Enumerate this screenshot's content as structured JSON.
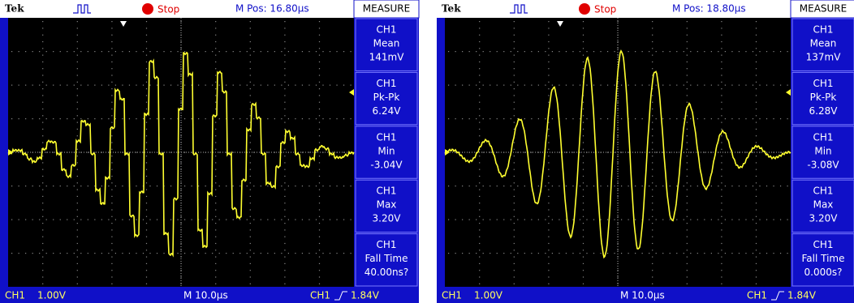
{
  "screens": [
    {
      "brand": "Tek",
      "status": "Stop",
      "position": "M Pos: 16.80µs",
      "menu_title": "MEASURE",
      "measurements": [
        {
          "channel": "CH1",
          "name": "Mean",
          "value": "141mV"
        },
        {
          "channel": "CH1",
          "name": "Pk-Pk",
          "value": "6.24V"
        },
        {
          "channel": "CH1",
          "name": "Min",
          "value": "-3.04V"
        },
        {
          "channel": "CH1",
          "name": "Max",
          "value": "3.20V"
        },
        {
          "channel": "CH1",
          "name": "Fall Time",
          "value": "40.00ns?"
        }
      ],
      "footer": {
        "channel": "CH1",
        "scale": "1.00V",
        "timebase": "M 10.0µs",
        "trigger_channel": "CH1",
        "trigger_level": "1.84V"
      }
    },
    {
      "brand": "Tek",
      "status": "Stop",
      "position": "M Pos: 18.80µs",
      "menu_title": "MEASURE",
      "measurements": [
        {
          "channel": "CH1",
          "name": "Mean",
          "value": "137mV"
        },
        {
          "channel": "CH1",
          "name": "Pk-Pk",
          "value": "6.28V"
        },
        {
          "channel": "CH1",
          "name": "Min",
          "value": "-3.08V"
        },
        {
          "channel": "CH1",
          "name": "Max",
          "value": "3.20V"
        },
        {
          "channel": "CH1",
          "name": "Fall Time",
          "value": "0.000s?"
        }
      ],
      "footer": {
        "channel": "CH1",
        "scale": "1.00V",
        "timebase": "M 10.0µs",
        "trigger_channel": "CH1",
        "trigger_level": "1.84V"
      }
    }
  ]
}
